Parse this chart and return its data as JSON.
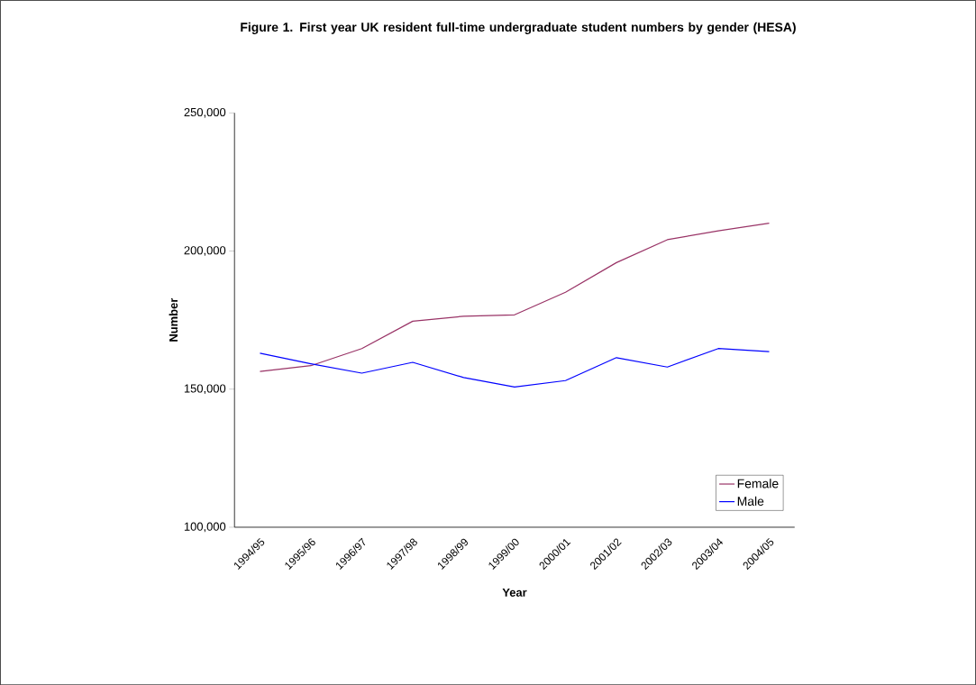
{
  "chart_data": {
    "type": "line",
    "title": "Figure 1.   First year UK resident full-time undergraduate student numbers by gender (HESA)",
    "xlabel": "Year",
    "ylabel": "Number",
    "categories": [
      "1994/95",
      "1995/96",
      "1996/97",
      "1997/98",
      "1998/99",
      "1999/00",
      "2000/01",
      "2001/02",
      "2002/03",
      "2003/04",
      "2004/05"
    ],
    "series": [
      {
        "name": "Female",
        "color": "#993366",
        "values": [
          156400,
          158500,
          164700,
          174600,
          176400,
          176900,
          185100,
          195800,
          204100,
          207300,
          210100
        ]
      },
      {
        "name": "Male",
        "color": "#0000ff",
        "values": [
          163000,
          159200,
          155800,
          159700,
          154200,
          150800,
          153100,
          161400,
          158000,
          164700,
          163600
        ]
      }
    ],
    "ylim": [
      100000,
      250000
    ],
    "yticks": [
      {
        "value": 100000,
        "label": "100,000"
      },
      {
        "value": 150000,
        "label": "150,000"
      },
      {
        "value": 200000,
        "label": "200,000"
      },
      {
        "value": 250000,
        "label": "250,000"
      }
    ],
    "grid": false,
    "legend": "bottom right",
    "marker": "none",
    "line_style": "solid"
  }
}
